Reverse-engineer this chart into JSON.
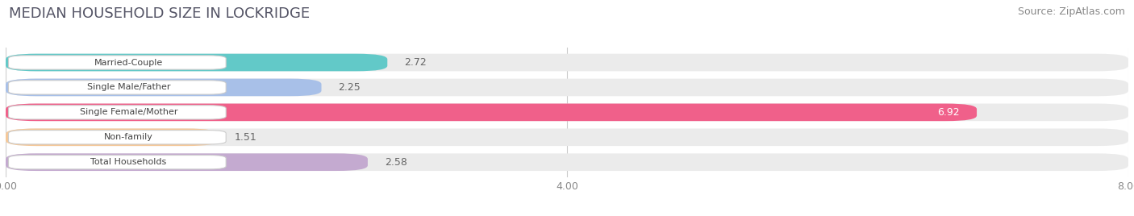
{
  "title": "MEDIAN HOUSEHOLD SIZE IN LOCKRIDGE",
  "source": "Source: ZipAtlas.com",
  "categories": [
    "Married-Couple",
    "Single Male/Father",
    "Single Female/Mother",
    "Non-family",
    "Total Households"
  ],
  "values": [
    2.72,
    2.25,
    6.92,
    1.51,
    2.58
  ],
  "bar_colors": [
    "#62c9c8",
    "#a8c0e8",
    "#f0608a",
    "#f5c898",
    "#c4aad0"
  ],
  "xlim": [
    0,
    8.0
  ],
  "xticks": [
    0.0,
    4.0,
    8.0
  ],
  "xtick_labels": [
    "0.00",
    "4.00",
    "8.00"
  ],
  "label_color_inside": "#ffffff",
  "label_color_outside": "#666666",
  "title_fontsize": 13,
  "source_fontsize": 9,
  "value_fontsize": 9,
  "category_fontsize": 8,
  "tick_fontsize": 9,
  "fig_bg": "#ffffff",
  "bar_bg_color": "#ebebeb",
  "bar_label_box_color": "#ffffff",
  "grid_color": "#cccccc"
}
